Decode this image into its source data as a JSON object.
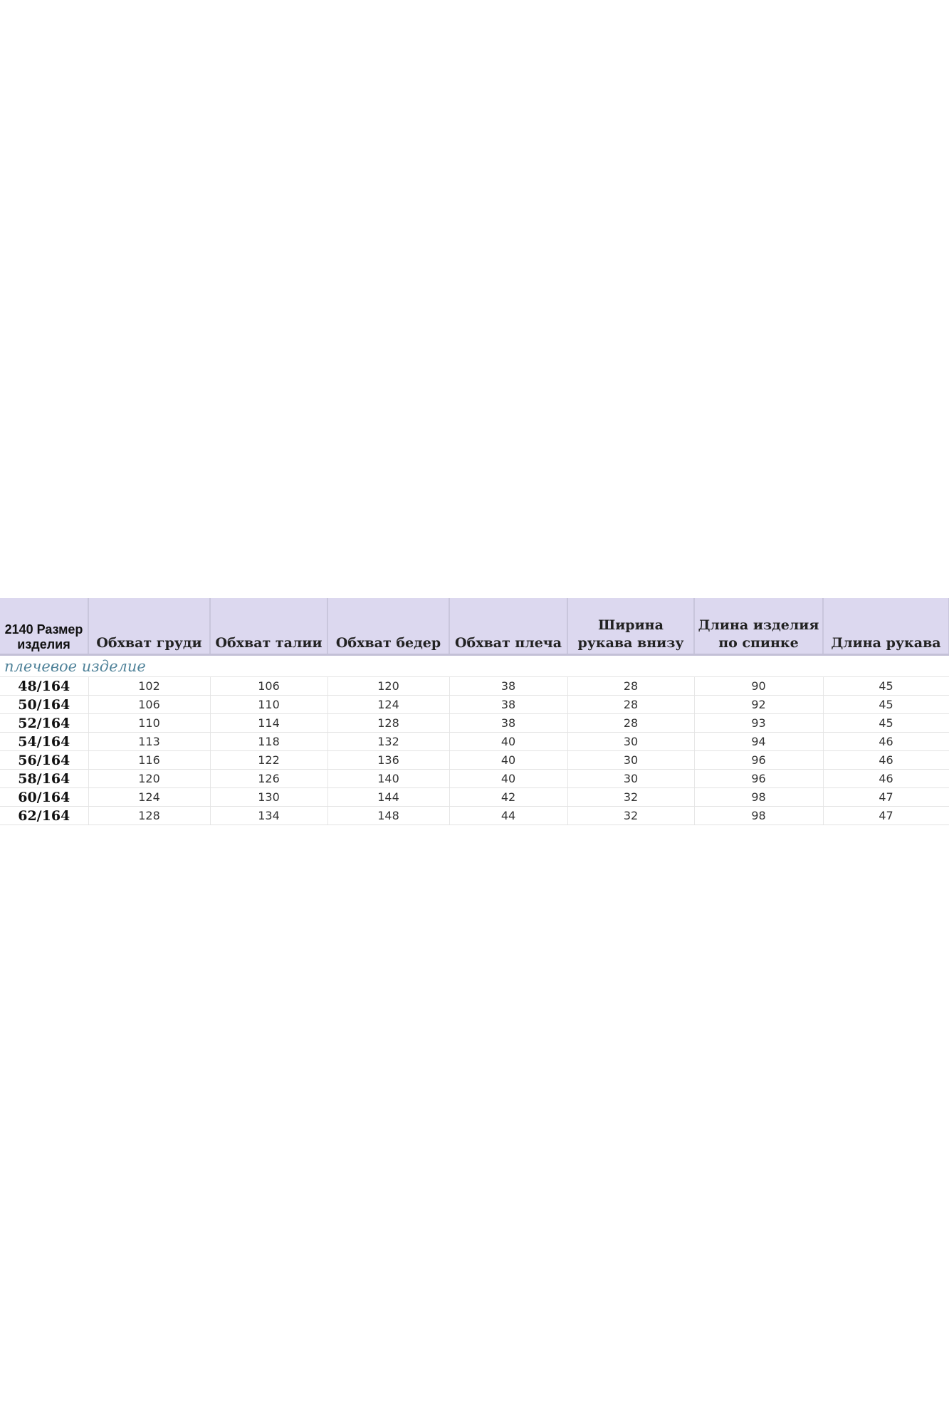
{
  "table": {
    "headers": [
      "2140 Размер изделия",
      "Обхват груди",
      "Обхват талии",
      "Обхват бедер",
      "Обхват плеча",
      "Ширина рукава внизу",
      "Длина изделия по спинке",
      "Длина рукава"
    ],
    "subtitle": "плечевое изделие",
    "rows": [
      [
        "48/164",
        "102",
        "106",
        "120",
        "38",
        "28",
        "90",
        "45"
      ],
      [
        "50/164",
        "106",
        "110",
        "124",
        "38",
        "28",
        "92",
        "45"
      ],
      [
        "52/164",
        "110",
        "114",
        "128",
        "38",
        "28",
        "93",
        "45"
      ],
      [
        "54/164",
        "113",
        "118",
        "132",
        "40",
        "30",
        "94",
        "46"
      ],
      [
        "56/164",
        "116",
        "122",
        "136",
        "40",
        "30",
        "96",
        "46"
      ],
      [
        "58/164",
        "120",
        "126",
        "140",
        "40",
        "30",
        "96",
        "46"
      ],
      [
        "60/164",
        "124",
        "130",
        "144",
        "42",
        "32",
        "98",
        "47"
      ],
      [
        "62/164",
        "128",
        "134",
        "148",
        "44",
        "32",
        "98",
        "47"
      ]
    ]
  },
  "colors": {
    "header_bg": "#dcd8ef",
    "subtitle": "#4f8299"
  }
}
